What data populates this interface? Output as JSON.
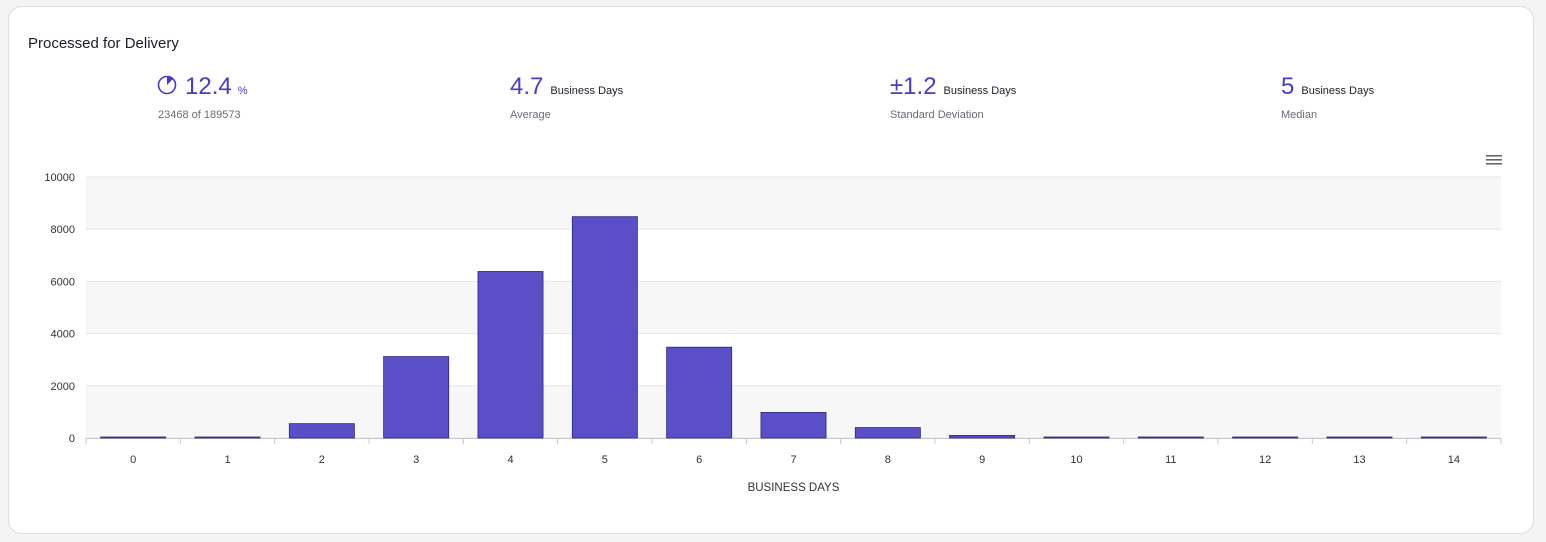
{
  "card": {
    "title": "Processed for Delivery"
  },
  "stats": [
    {
      "value": "12.4",
      "unit": "%",
      "sub": "23468 of 189573",
      "fraction": 0.124,
      "icon": "pie-progress-icon"
    },
    {
      "value": "4.7",
      "unit": "Business Days",
      "sub": "Average"
    },
    {
      "value": "±1.2",
      "unit": "Business Days",
      "sub": "Standard Deviation"
    },
    {
      "value": "5",
      "unit": "Business Days",
      "sub": "Median"
    }
  ],
  "menu": {
    "icon": "hamburger-menu-icon"
  },
  "colors": {
    "accent": "#4a3bc4",
    "bar": "#5b4fc7",
    "bar_stroke": "#2e2580",
    "plot_band": "#f7f7f7",
    "grid": "#e6e6e6"
  },
  "chart_data": {
    "type": "bar",
    "categories": [
      "0",
      "1",
      "2",
      "3",
      "4",
      "5",
      "6",
      "7",
      "8",
      "9",
      "10",
      "11",
      "12",
      "13",
      "14"
    ],
    "values": [
      10,
      30,
      550,
      3120,
      6380,
      8480,
      3480,
      980,
      400,
      100,
      20,
      10,
      5,
      5,
      5
    ],
    "title": "",
    "xlabel": "BUSINESS DAYS",
    "ylabel": "",
    "ylim": [
      0,
      10000
    ],
    "yticks": [
      0,
      2000,
      4000,
      6000,
      8000,
      10000
    ],
    "grid": true,
    "legend": "none"
  }
}
